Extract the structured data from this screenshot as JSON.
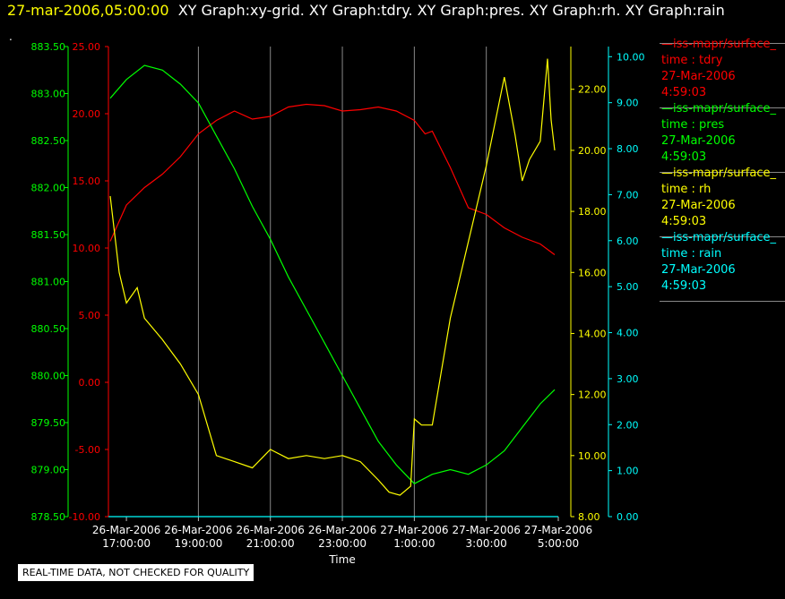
{
  "header": {
    "timestamp": "27-mar-2006,05:00:00",
    "titles": "XY Graph:xy-grid.  XY Graph:tdry.  XY Graph:pres.  XY Graph:rh.  XY Graph:rain",
    "dot": "."
  },
  "disclaimer": "REAL-TIME DATA, NOT CHECKED FOR QUALITY",
  "legend": [
    {
      "name": "—iss-mapr/surface_",
      "var": "time : tdry",
      "date": "27-Mar-2006",
      "time": "4:59:03",
      "color": "#ff0000"
    },
    {
      "name": "—iss-mapr/surface_",
      "var": "time : pres",
      "date": "27-Mar-2006",
      "time": "4:59:03",
      "color": "#00ff00"
    },
    {
      "name": "—iss-mapr/surface_",
      "var": "time : rh",
      "date": "27-Mar-2006",
      "time": "4:59:03",
      "color": "#ffff00"
    },
    {
      "name": "—iss-mapr/surface_",
      "var": "time : rain",
      "date": "27-Mar-2006",
      "time": "4:59:03",
      "color": "#00ffff"
    }
  ],
  "chart_data": {
    "type": "line",
    "xlabel": "Time",
    "x_range_hours": [
      16.5,
      29.0
    ],
    "x_ticks": [
      {
        "h": 17,
        "date": "26-Mar-2006",
        "time": "17:00:00"
      },
      {
        "h": 19,
        "date": "26-Mar-2006",
        "time": "19:00:00"
      },
      {
        "h": 21,
        "date": "26-Mar-2006",
        "time": "21:00:00"
      },
      {
        "h": 23,
        "date": "26-Mar-2006",
        "time": "23:00:00"
      },
      {
        "h": 25,
        "date": "27-Mar-2006",
        "time": "1:00:00"
      },
      {
        "h": 27,
        "date": "27-Mar-2006",
        "time": "3:00:00"
      },
      {
        "h": 29,
        "date": "27-Mar-2006",
        "time": "5:00:00"
      }
    ],
    "axes": {
      "pres": {
        "ylim": [
          878.5,
          883.5
        ],
        "ticks": [
          "878.50",
          "879.00",
          "879.50",
          "880.00",
          "880.50",
          "881.00",
          "881.50",
          "882.00",
          "882.50",
          "883.00",
          "883.50"
        ],
        "color": "#00ff00"
      },
      "tdry": {
        "ylim": [
          -10,
          25
        ],
        "ticks": [
          "-10.00",
          "-5.00",
          "0.00",
          "5.00",
          "10.00",
          "15.00",
          "20.00",
          "25.00"
        ],
        "color": "#ff0000"
      },
      "rh": {
        "ylim": [
          8,
          23.4
        ],
        "ticks": [
          "8.00",
          "10.00",
          "12.00",
          "14.00",
          "16.00",
          "18.00",
          "20.00",
          "22.00"
        ],
        "color": "#ffff00"
      },
      "rain": {
        "ylim": [
          0,
          10.22
        ],
        "ticks": [
          "0.00",
          "1.00",
          "2.00",
          "3.00",
          "4.00",
          "5.00",
          "6.00",
          "7.00",
          "8.00",
          "9.00",
          "10.00"
        ],
        "color": "#00ffff"
      }
    },
    "series": [
      {
        "name": "tdry",
        "axis": "tdry",
        "color": "#ff0000",
        "x": [
          16.55,
          17.0,
          17.5,
          18.0,
          18.5,
          19.0,
          19.5,
          20.0,
          20.5,
          21.0,
          21.5,
          22.0,
          22.5,
          23.0,
          23.5,
          24.0,
          24.5,
          25.0,
          25.3,
          25.5,
          26.0,
          26.5,
          27.0,
          27.5,
          28.0,
          28.5,
          28.9
        ],
        "y": [
          10.5,
          13.2,
          14.5,
          15.5,
          16.8,
          18.5,
          19.5,
          20.2,
          19.6,
          19.8,
          20.5,
          20.7,
          20.6,
          20.2,
          20.3,
          20.5,
          20.2,
          19.5,
          18.5,
          18.7,
          16.0,
          13.0,
          12.5,
          11.5,
          10.8,
          10.3,
          9.5
        ]
      },
      {
        "name": "pres",
        "axis": "pres",
        "color": "#00ff00",
        "x": [
          16.55,
          17.0,
          17.5,
          18.0,
          18.5,
          19.0,
          19.5,
          20.0,
          20.5,
          21.0,
          21.5,
          22.0,
          22.5,
          23.0,
          23.5,
          24.0,
          24.5,
          25.0,
          25.5,
          26.0,
          26.5,
          27.0,
          27.5,
          28.0,
          28.5,
          28.9
        ],
        "y": [
          882.95,
          883.15,
          883.3,
          883.25,
          883.1,
          882.9,
          882.55,
          882.2,
          881.8,
          881.45,
          881.05,
          880.7,
          880.35,
          880.0,
          879.65,
          879.3,
          879.05,
          878.85,
          878.95,
          879.0,
          878.95,
          879.05,
          879.2,
          879.45,
          879.7,
          879.85
        ]
      },
      {
        "name": "rh",
        "axis": "rh",
        "color": "#ffff00",
        "x": [
          16.55,
          16.8,
          17.0,
          17.3,
          17.5,
          18.0,
          18.5,
          19.0,
          19.5,
          20.0,
          20.5,
          21.0,
          21.5,
          22.0,
          22.5,
          23.0,
          23.5,
          24.0,
          24.3,
          24.6,
          24.9,
          25.0,
          25.2,
          25.5,
          26.0,
          26.5,
          27.0,
          27.5,
          27.8,
          28.0,
          28.2,
          28.5,
          28.7,
          28.8,
          28.9
        ],
        "y": [
          18.5,
          16.0,
          15.0,
          15.5,
          14.5,
          13.8,
          13.0,
          12.0,
          10.0,
          9.8,
          9.6,
          10.2,
          9.9,
          10.0,
          9.9,
          10.0,
          9.8,
          9.2,
          8.8,
          8.7,
          9.0,
          11.2,
          11.0,
          11.0,
          14.5,
          17.0,
          19.5,
          22.4,
          20.5,
          19.0,
          19.7,
          20.3,
          23.0,
          21.0,
          20.0
        ]
      },
      {
        "name": "rain",
        "axis": "rain",
        "color": "#00ffff",
        "x": [
          16.5,
          29.0
        ],
        "y": [
          0.0,
          0.0
        ]
      }
    ]
  }
}
